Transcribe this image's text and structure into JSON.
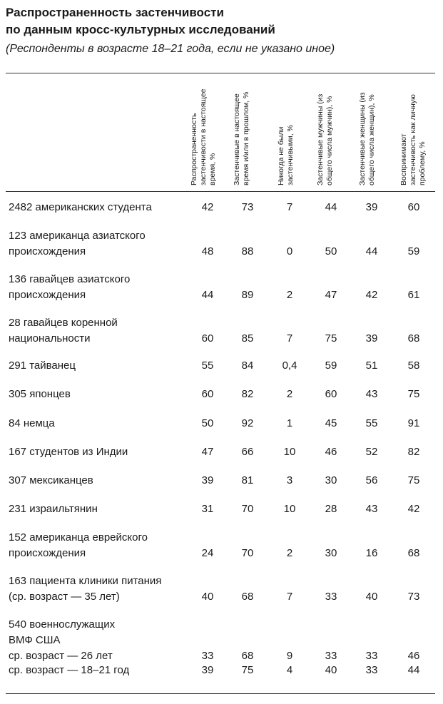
{
  "title_line1": "Распространенность застенчивости",
  "title_line2": "по данным кросс-культурных исследований",
  "subtitle": "(Респонденты в возрасте 18–21 года, если не указано иное)",
  "columns": [
    "Распространенность застенчивости в настоящее время, %",
    "Застенчивые в настоящее время и/или в прошлом, %",
    "Никогда не были застенчивыми, %",
    "Застенчивые мужчины (из общего числа мужчин), %",
    "Застенчивые женщины (из общего числа женщин), %",
    "Воспринимают застенчивость как личную проблему, %"
  ],
  "rows": [
    {
      "label": [
        "2482 американских студента"
      ],
      "values": [
        "42",
        "73",
        "7",
        "44",
        "39",
        "60"
      ]
    },
    {
      "label": [
        "123 американца азиатского",
        "происхождения"
      ],
      "values": [
        "48",
        "88",
        "0",
        "50",
        "44",
        "59"
      ]
    },
    {
      "label": [
        "136 гавайцев азиатского",
        "происхождения"
      ],
      "values": [
        "44",
        "89",
        "2",
        "47",
        "42",
        "61"
      ]
    },
    {
      "label": [
        "28 гавайцев коренной",
        "национальности"
      ],
      "values": [
        "60",
        "85",
        "7",
        "75",
        "39",
        "68"
      ]
    },
    {
      "label": [
        "291 тайванец"
      ],
      "values": [
        "55",
        "84",
        "0,4",
        "59",
        "51",
        "58"
      ]
    },
    {
      "label": [
        "305 японцев"
      ],
      "values": [
        "60",
        "82",
        "2",
        "60",
        "43",
        "75"
      ]
    },
    {
      "label": [
        "84 немца"
      ],
      "values": [
        "50",
        "92",
        "1",
        "45",
        "55",
        "91"
      ]
    },
    {
      "label": [
        "167 студентов из Индии"
      ],
      "values": [
        "47",
        "66",
        "10",
        "46",
        "52",
        "82"
      ]
    },
    {
      "label": [
        "307 мексиканцев"
      ],
      "values": [
        "39",
        "81",
        "3",
        "30",
        "56",
        "75"
      ]
    },
    {
      "label": [
        "231 израильтянин"
      ],
      "values": [
        "31",
        "70",
        "10",
        "28",
        "43",
        "42"
      ]
    },
    {
      "label": [
        "152 американца еврейского",
        "происхождения"
      ],
      "values": [
        "24",
        "70",
        "2",
        "30",
        "16",
        "68"
      ]
    },
    {
      "label": [
        "163 пациента клиники питания",
        "(ср. возраст — 35 лет)"
      ],
      "values": [
        "40",
        "68",
        "7",
        "33",
        "40",
        "73"
      ]
    }
  ],
  "navy": {
    "label": [
      "540 военнослужащих",
      "ВМФ США"
    ],
    "sub": [
      {
        "label": "ср. возраст — 26 лет",
        "values": [
          "33",
          "68",
          "9",
          "33",
          "33",
          "46"
        ]
      },
      {
        "label": "ср. возраст — 18–21 год",
        "values": [
          "39",
          "75",
          "4",
          "40",
          "33",
          "44"
        ]
      }
    ]
  }
}
